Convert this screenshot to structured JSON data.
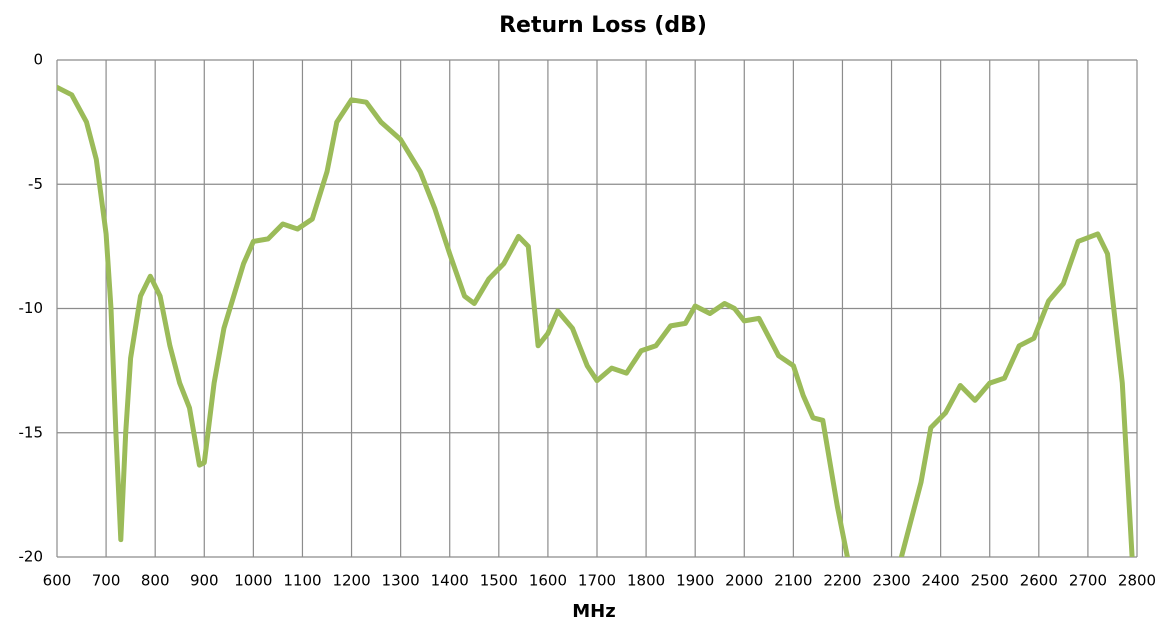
{
  "chart_data": {
    "type": "line",
    "title": "Return Loss (dB)",
    "x_label": "MHz",
    "xlim": [
      600,
      2800
    ],
    "xticks": [
      600,
      700,
      800,
      900,
      1000,
      1100,
      1200,
      1300,
      1400,
      1500,
      1600,
      1700,
      1800,
      1900,
      2000,
      2100,
      2200,
      2300,
      2400,
      2500,
      2600,
      2700,
      2800
    ],
    "ylim": [
      -20,
      0
    ],
    "yticks": [
      0,
      -5,
      -10,
      -15,
      -20
    ],
    "grid": true,
    "x": [
      600,
      630,
      660,
      680,
      700,
      710,
      720,
      730,
      740,
      750,
      770,
      790,
      810,
      830,
      850,
      870,
      890,
      900,
      920,
      940,
      960,
      980,
      1000,
      1030,
      1060,
      1090,
      1120,
      1150,
      1170,
      1200,
      1230,
      1260,
      1300,
      1340,
      1370,
      1400,
      1430,
      1450,
      1480,
      1510,
      1540,
      1560,
      1580,
      1600,
      1620,
      1650,
      1680,
      1700,
      1730,
      1760,
      1790,
      1820,
      1850,
      1880,
      1900,
      1930,
      1960,
      1980,
      2000,
      2030,
      2070,
      2100,
      2120,
      2140,
      2160,
      2190,
      2210,
      2260,
      2320,
      2360,
      2380,
      2410,
      2440,
      2470,
      2500,
      2530,
      2560,
      2590,
      2620,
      2650,
      2680,
      2720,
      2740,
      2770,
      2790
    ],
    "series": [
      {
        "name": "Return Loss",
        "color": "#9bbb59",
        "values": [
          -1.1,
          -1.4,
          -2.5,
          -4,
          -7,
          -10,
          -15,
          -19.3,
          -15,
          -12,
          -9.5,
          -8.7,
          -9.5,
          -11.5,
          -13,
          -14,
          -16.3,
          -16.2,
          -13,
          -10.8,
          -9.5,
          -8.2,
          -7.3,
          -7.2,
          -6.6,
          -6.8,
          -6.4,
          -4.5,
          -2.5,
          -1.6,
          -1.7,
          -2.5,
          -3.2,
          -4.5,
          -6,
          -7.8,
          -9.5,
          -9.8,
          -8.8,
          -8.2,
          -7.1,
          -7.5,
          -11.5,
          -11,
          -10.1,
          -10.8,
          -12.3,
          -12.9,
          -12.4,
          -12.6,
          -11.7,
          -11.5,
          -10.7,
          -10.6,
          -9.9,
          -10.2,
          -9.8,
          -10,
          -10.5,
          -10.4,
          -11.9,
          -12.3,
          -13.5,
          -14.4,
          -14.5,
          -18,
          -20,
          null,
          -20,
          -17,
          -14.8,
          -14.2,
          -13.1,
          -13.7,
          -13,
          -12.8,
          -11.5,
          -11.2,
          -9.7,
          -9,
          -7.3,
          -7,
          -7.8,
          -13,
          -20
        ]
      }
    ]
  }
}
